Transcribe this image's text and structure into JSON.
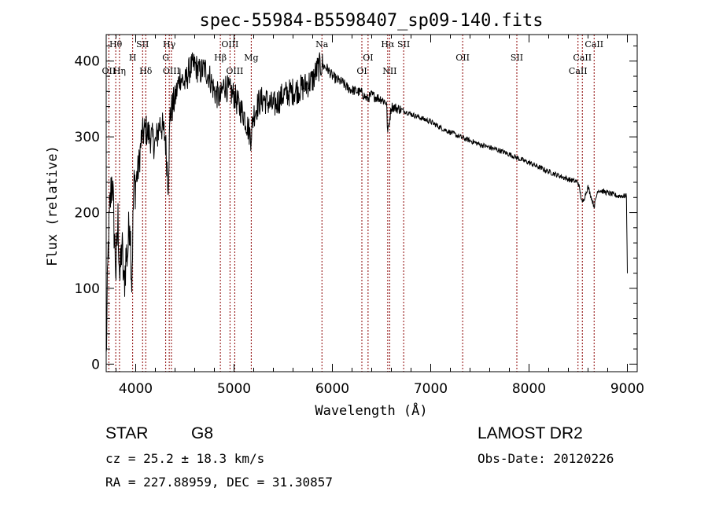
{
  "chart_data": {
    "type": "line",
    "title": "spec-55984-B5598407_sp09-140.fits",
    "xlabel": "Wavelength (Å)",
    "ylabel": "Flux (relative)",
    "xlim": [
      3700,
      9100
    ],
    "ylim": [
      -10,
      435
    ],
    "xticks": [
      "4000",
      "5000",
      "6000",
      "7000",
      "8000",
      "9000"
    ],
    "yticks": [
      "0",
      "100",
      "200",
      "300",
      "400"
    ],
    "series": [
      {
        "x": [
          3700,
          3720,
          3740,
          3760,
          3780,
          3800,
          3820,
          3840,
          3860,
          3880,
          3900,
          3920,
          3940,
          3960,
          3980,
          4000,
          4030,
          4060,
          4100,
          4150,
          4200,
          4250,
          4300,
          4330,
          4350,
          4400,
          4450,
          4500,
          4550,
          4600,
          4650,
          4700,
          4750,
          4800,
          4860,
          4900,
          4950,
          5000,
          5050,
          5100,
          5170,
          5200,
          5250,
          5300,
          5400,
          5500,
          5600,
          5700,
          5800,
          5850,
          5890,
          5950,
          6000,
          6050,
          6100,
          6150,
          6200,
          6250,
          6300,
          6350,
          6400,
          6450,
          6500,
          6550,
          6563,
          6600,
          6700,
          6800,
          6900,
          7000,
          7100,
          7200,
          7300,
          7400,
          7500,
          7600,
          7700,
          7800,
          7900,
          8000,
          8100,
          8200,
          8300,
          8400,
          8500,
          8542,
          8600,
          8662,
          8700,
          8800,
          8900,
          8990,
          9000
        ],
        "y": [
          5,
          150,
          210,
          250,
          180,
          120,
          190,
          110,
          160,
          100,
          140,
          150,
          200,
          110,
          230,
          240,
          260,
          300,
          310,
          300,
          290,
          320,
          300,
          240,
          330,
          350,
          380,
          370,
          390,
          395,
          385,
          390,
          380,
          360,
          350,
          370,
          360,
          355,
          340,
          330,
          300,
          330,
          345,
          350,
          340,
          355,
          360,
          365,
          375,
          390,
          395,
          390,
          380,
          375,
          372,
          365,
          362,
          360,
          358,
          350,
          355,
          352,
          350,
          345,
          305,
          340,
          336,
          330,
          325,
          320,
          312,
          306,
          300,
          295,
          290,
          286,
          282,
          277,
          271,
          266,
          260,
          254,
          249,
          244,
          240,
          212,
          234,
          208,
          230,
          226,
          222,
          222,
          120
        ]
      }
    ],
    "spectral_lines": [
      {
        "label": "Hθ",
        "x": 3797,
        "row": 0
      },
      {
        "label": "OII",
        "x": 3727,
        "row": 2
      },
      {
        "label": "Hη",
        "x": 3835,
        "row": 2
      },
      {
        "label": "H",
        "x": 3969,
        "row": 1
      },
      {
        "label": "SII",
        "x": 4070,
        "row": 0
      },
      {
        "label": "Hδ",
        "x": 4102,
        "row": 2
      },
      {
        "label": "Hγ",
        "x": 4341,
        "row": 0
      },
      {
        "label": "G",
        "x": 4305,
        "row": 1
      },
      {
        "label": "OIII",
        "x": 4363,
        "row": 2
      },
      {
        "label": "Hβ",
        "x": 4861,
        "row": 1
      },
      {
        "label": "OIII",
        "x": 4959,
        "row": 0
      },
      {
        "label": "OIII",
        "x": 5007,
        "row": 2
      },
      {
        "label": "Mg",
        "x": 5175,
        "row": 1
      },
      {
        "label": "Na",
        "x": 5894,
        "row": 0
      },
      {
        "label": "OI",
        "x": 6300,
        "row": 2
      },
      {
        "label": "OI",
        "x": 6363,
        "row": 1
      },
      {
        "label": "Hα",
        "x": 6563,
        "row": 0
      },
      {
        "label": "NII",
        "x": 6583,
        "row": 2
      },
      {
        "label": "SII",
        "x": 6725,
        "row": 0
      },
      {
        "label": "OII",
        "x": 7325,
        "row": 1
      },
      {
        "label": "SII",
        "x": 7876,
        "row": 1
      },
      {
        "label": "CaII",
        "x": 8498,
        "row": 2
      },
      {
        "label": "CaII",
        "x": 8542,
        "row": 1
      },
      {
        "label": "CaII",
        "x": 8662,
        "row": 0
      }
    ],
    "grid": false,
    "line_color": "#000000",
    "marker_line_color": "#8b0000"
  },
  "info": {
    "class": "STAR",
    "subclass": "G8",
    "survey": "LAMOST DR2",
    "cz": "cz = 25.2 ± 18.3 km/s",
    "obs_date": "Obs-Date: 20120226",
    "coords": "RA = 227.88959, DEC =  31.30857"
  }
}
